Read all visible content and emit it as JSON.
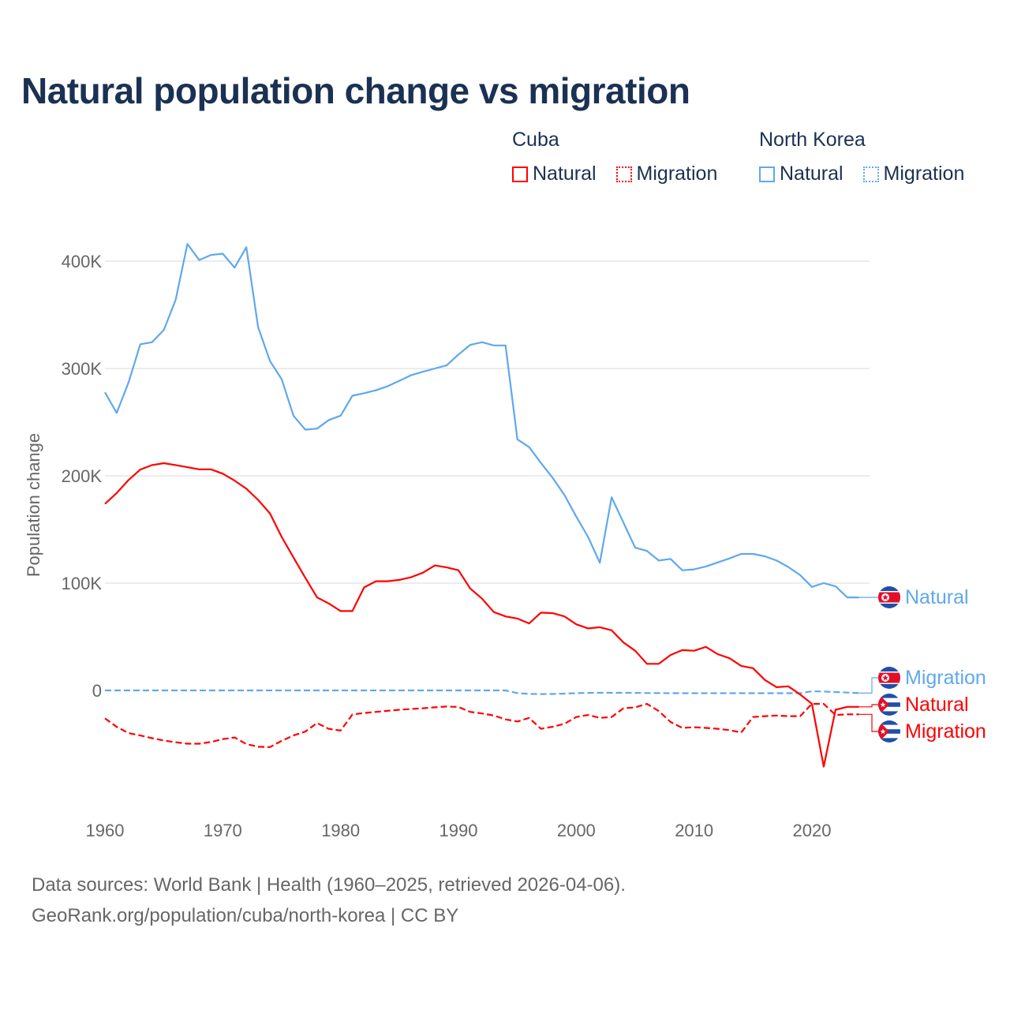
{
  "title": "Natural population change vs migration",
  "legend": {
    "groups": [
      {
        "name": "Cuba",
        "items": [
          {
            "label": "Natural",
            "color": "#ff0000",
            "style": "solid"
          },
          {
            "label": "Migration",
            "color": "#ff0000",
            "style": "dotted"
          }
        ]
      },
      {
        "name": "North Korea",
        "items": [
          {
            "label": "Natural",
            "color": "#5fa8ee",
            "style": "solid"
          },
          {
            "label": "Migration",
            "color": "#5fa8ee",
            "style": "dotted"
          }
        ]
      }
    ]
  },
  "chart_data": {
    "type": "line",
    "title": "Natural population change vs migration",
    "xlabel": "",
    "ylabel": "Population change",
    "value_scale": 1000,
    "xlim": [
      1960,
      2025
    ],
    "ylim": [
      -75,
      425
    ],
    "x_ticks": [
      1960,
      1970,
      1980,
      1990,
      2000,
      2010,
      2020
    ],
    "y_ticks": [
      {
        "v": 0,
        "label": "0"
      },
      {
        "v": 100,
        "label": "100K"
      },
      {
        "v": 200,
        "label": "200K"
      },
      {
        "v": 300,
        "label": "300K"
      },
      {
        "v": 400,
        "label": "400K"
      }
    ],
    "grid": true,
    "legend_placement": "top-right",
    "x_start": 1960,
    "series": [
      {
        "key": "nk_natural",
        "country": "North Korea",
        "name": "Natural",
        "color": "#5fa8ee",
        "dash": false,
        "flag": "north-korea",
        "values": [
          277.8,
          258.6,
          287,
          322.6,
          324.5,
          336,
          364,
          416,
          401,
          405.8,
          407,
          394,
          413,
          338.6,
          307,
          290,
          256,
          243,
          244,
          252,
          256,
          274.6,
          277,
          279.7,
          283.5,
          288.6,
          293.8,
          297,
          300,
          303,
          313,
          322,
          324.5,
          321.5,
          321.5,
          234,
          226.7,
          212,
          198,
          182,
          162,
          143,
          119,
          180,
          156.4,
          133,
          130,
          121,
          122.6,
          112,
          112.8,
          115.5,
          119.3,
          123,
          127.2,
          127.2,
          125,
          121,
          115,
          107.4,
          96.5,
          100,
          97,
          86.7,
          86.7
        ]
      },
      {
        "key": "nk_migration",
        "country": "North Korea",
        "name": "Migration",
        "color": "#5fa8ee",
        "dash": true,
        "flag": "north-korea",
        "values": [
          0,
          0,
          0,
          0,
          0,
          0,
          0,
          0,
          0,
          0,
          0,
          0,
          0,
          0,
          0,
          0,
          0,
          0,
          0,
          0,
          0,
          0,
          0,
          0,
          0,
          0,
          0,
          0,
          0,
          0,
          0,
          0,
          0,
          0,
          0,
          -2.5,
          -3.2,
          -3.4,
          -3.3,
          -3,
          -2.5,
          -2.3,
          -2.2,
          -2.2,
          -2.2,
          -2.3,
          -2.4,
          -2.5,
          -2.6,
          -2.6,
          -2.6,
          -2.6,
          -2.6,
          -2.6,
          -2.6,
          -2.6,
          -2.6,
          -2.6,
          -2.6,
          -2.6,
          -0.8,
          -1,
          -1.5,
          -2,
          -2.5
        ]
      },
      {
        "key": "cu_natural",
        "country": "Cuba",
        "name": "Natural",
        "color": "#ff0000",
        "dash": false,
        "flag": "cuba",
        "values": [
          173.8,
          184,
          196,
          205.8,
          210,
          211.8,
          210,
          208,
          206,
          206,
          202,
          195.5,
          188,
          177.6,
          165,
          143,
          124,
          105,
          86.7,
          81,
          74,
          74,
          96,
          101.8,
          101.8,
          103,
          105.6,
          109.8,
          116.5,
          114.6,
          112,
          95,
          85.5,
          73,
          69,
          67,
          62.4,
          72.5,
          72,
          69,
          61.6,
          57.8,
          58.9,
          56,
          44.7,
          37,
          24.8,
          24.8,
          33,
          37.6,
          37,
          40.6,
          33.8,
          30,
          22.9,
          20.7,
          9.8,
          3,
          3.8,
          -3.8,
          -12.5,
          -71,
          -18,
          -15.3,
          -15.3
        ]
      },
      {
        "key": "cu_migration",
        "country": "Cuba",
        "name": "Migration",
        "color": "#ff0000",
        "dash": true,
        "flag": "cuba",
        "values": [
          -26,
          -34,
          -39.7,
          -42,
          -44.5,
          -46.7,
          -48.3,
          -49.6,
          -49.6,
          -48,
          -45.4,
          -43.8,
          -50,
          -52.5,
          -52.8,
          -47,
          -42,
          -38.4,
          -30.4,
          -35.8,
          -37.4,
          -22.4,
          -21,
          -20,
          -19,
          -18,
          -17.3,
          -16.6,
          -15.7,
          -15,
          -15.4,
          -20,
          -21.5,
          -23.4,
          -27,
          -29,
          -25.6,
          -35.7,
          -33.8,
          -31,
          -24.8,
          -22.9,
          -25.6,
          -24.8,
          -16.6,
          -15.8,
          -12.5,
          -19.3,
          -29.4,
          -34.9,
          -34.3,
          -34.9,
          -35.7,
          -37,
          -39.2,
          -24.8,
          -24,
          -23.4,
          -24,
          -24,
          -12.5,
          -12.5,
          -22.9,
          -22.3,
          -22.3
        ]
      }
    ]
  },
  "footer": {
    "line1": "Data sources: World Bank | Health (1960–2025, retrieved 2026-04-06).",
    "line2": "GeoRank.org/population/cuba/north-korea | CC BY"
  }
}
